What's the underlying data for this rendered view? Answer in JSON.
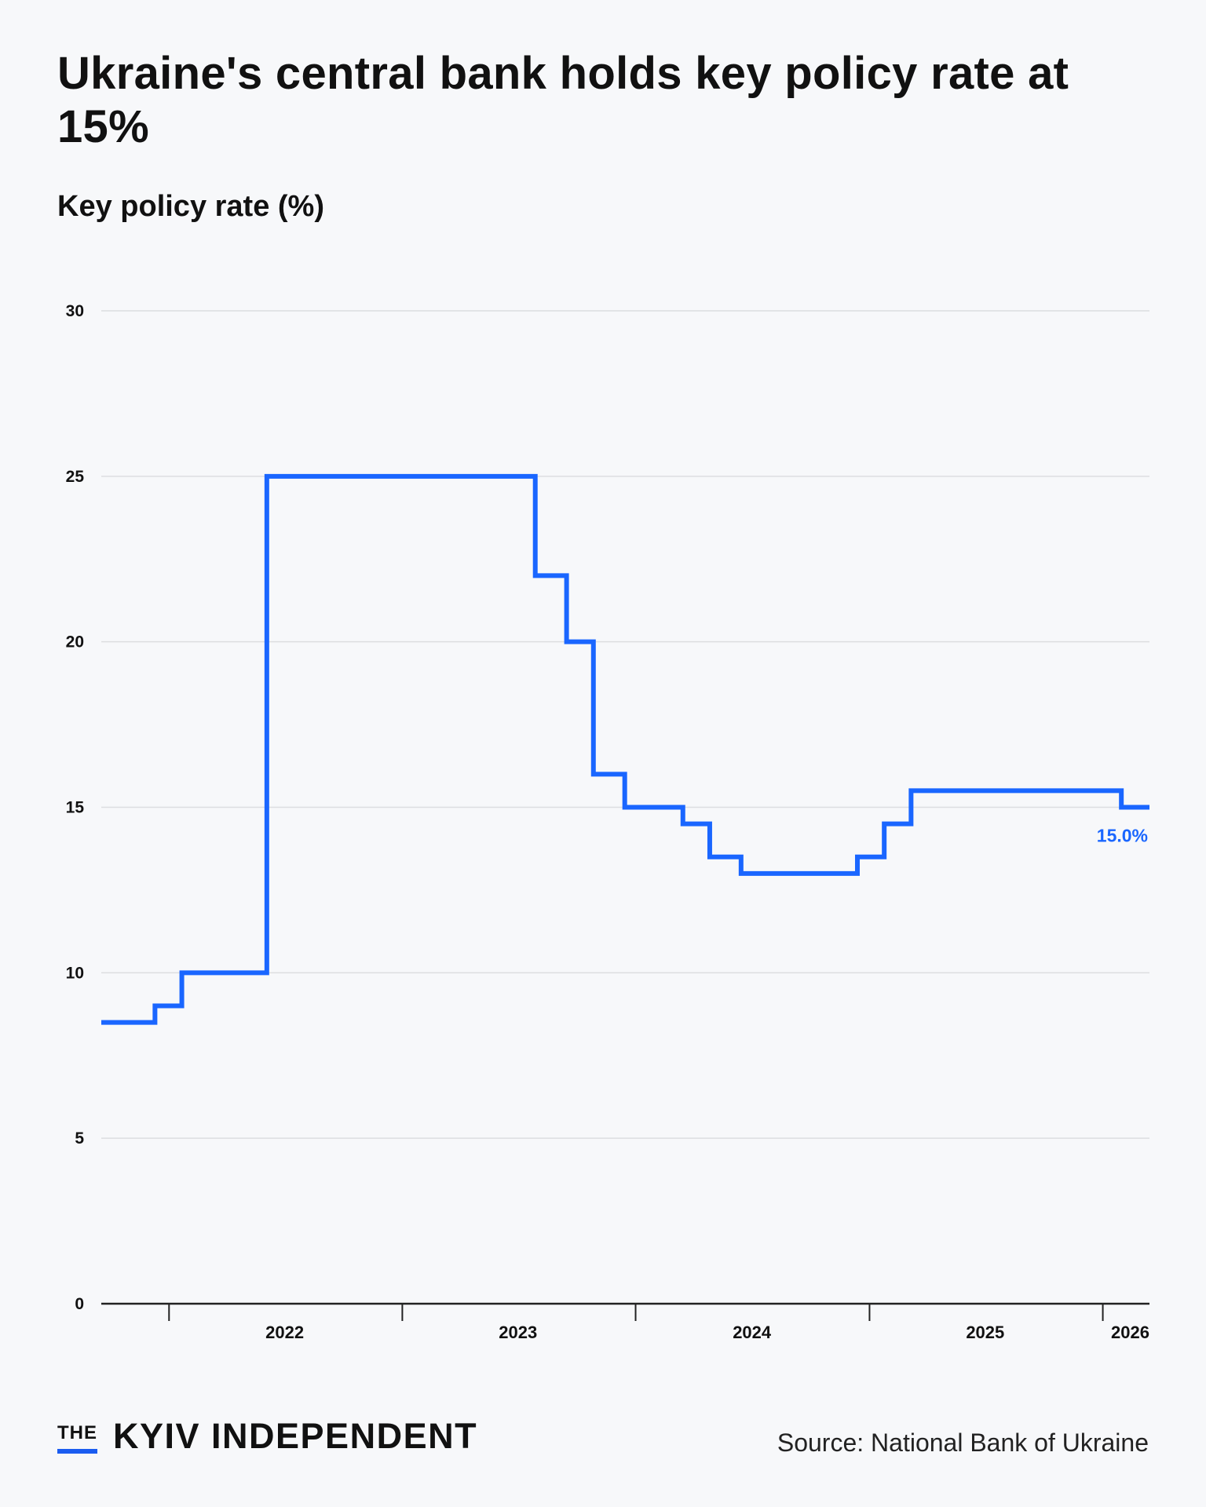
{
  "header": {
    "title": "Ukraine's central bank holds key policy rate at 15%",
    "subtitle": "Key policy rate (%)"
  },
  "chart_data": {
    "type": "line",
    "step": "after",
    "title": "Ukraine's central bank holds key policy rate at 15%",
    "ylabel": "Key policy rate (%)",
    "xlabel": "",
    "ylim": [
      0,
      30
    ],
    "yticks": [
      0,
      5,
      10,
      15,
      20,
      25,
      30
    ],
    "xlim": [
      "2021-09-17",
      "2026-03-15"
    ],
    "xticks": [
      {
        "label": "2022",
        "date": "2022-07-01"
      },
      {
        "label": "2023",
        "date": "2023-07-01"
      },
      {
        "label": "2024",
        "date": "2024-07-01"
      },
      {
        "label": "2025",
        "date": "2025-07-01"
      },
      {
        "label": "2026",
        "date": "2026-01-31"
      }
    ],
    "year_boundaries": [
      "2022-01-01",
      "2023-01-01",
      "2024-01-01",
      "2025-01-01",
      "2026-01-01"
    ],
    "grid": true,
    "series": [
      {
        "color": "#1a66ff",
        "points": [
          {
            "x": "2021-09-17",
            "y": 8.5
          },
          {
            "x": "2021-12-10",
            "y": 9
          },
          {
            "x": "2022-01-21",
            "y": 10
          },
          {
            "x": "2022-06-03",
            "y": 25
          },
          {
            "x": "2023-07-28",
            "y": 22
          },
          {
            "x": "2023-09-15",
            "y": 20
          },
          {
            "x": "2023-10-27",
            "y": 16
          },
          {
            "x": "2023-12-15",
            "y": 15
          },
          {
            "x": "2024-03-15",
            "y": 14.5
          },
          {
            "x": "2024-04-26",
            "y": 13.5
          },
          {
            "x": "2024-06-14",
            "y": 13
          },
          {
            "x": "2024-12-13",
            "y": 13.5
          },
          {
            "x": "2025-01-24",
            "y": 14.5
          },
          {
            "x": "2025-03-07",
            "y": 15.5
          },
          {
            "x": "2026-01-30",
            "y": 15
          }
        ]
      }
    ],
    "annotations": [
      {
        "text": "15.0%",
        "color": "#1a66ff"
      }
    ]
  },
  "footer": {
    "logo_the": "THE",
    "logo_main": "KYIV INDEPENDENT",
    "source": "Source: National Bank of Ukraine"
  }
}
